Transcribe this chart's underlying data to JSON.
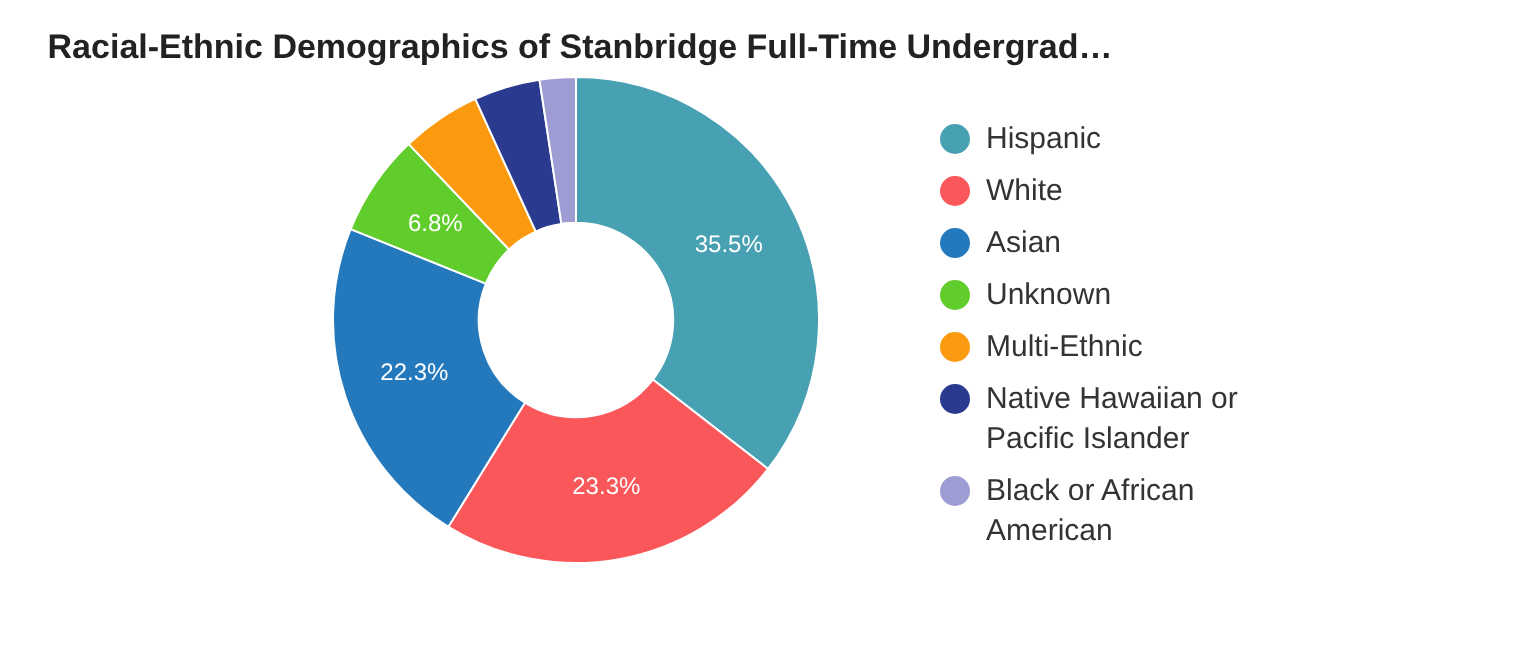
{
  "chart_data": {
    "type": "donut",
    "title": "Racial-Ethnic Demographics of Stanbridge Full-Time Undergrad…",
    "categories": [
      "Hispanic",
      "White",
      "Asian",
      "Unknown",
      "Multi-Ethnic",
      "Native Hawaiian or Pacific Islander",
      "Black or African American"
    ],
    "values": [
      35.5,
      23.3,
      22.3,
      6.8,
      5.3,
      4.4,
      2.4
    ],
    "colors": [
      "#48a1b3",
      "#f9575a",
      "#2479bd",
      "#61cd2c",
      "#fb9a0f",
      "#2a3b8f",
      "#9d9dd3"
    ],
    "value_labels": [
      "35.5%",
      "23.3%",
      "22.3%",
      "6.8%",
      null,
      null,
      null
    ],
    "legend": "right"
  }
}
